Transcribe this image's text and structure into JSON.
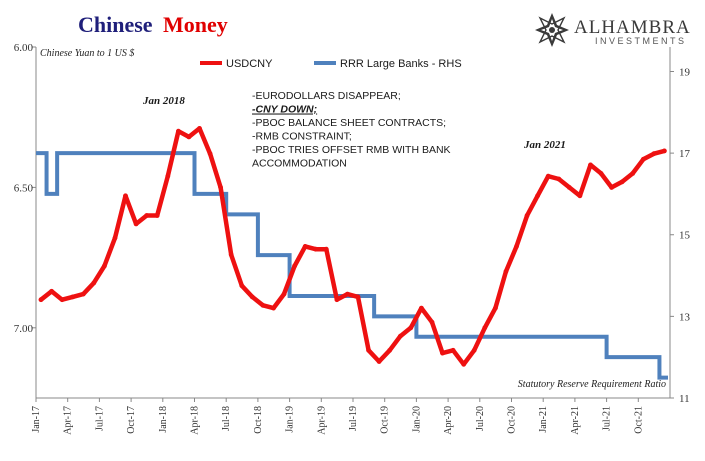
{
  "title": {
    "part1": "Chinese",
    "part2": "Money",
    "color1": "#1f1f7a",
    "color2": "#e00000"
  },
  "logo": {
    "name": "ALHAMBRA",
    "sub": "INVESTMENTS",
    "icon": "alhambra-star-icon"
  },
  "chart_data": {
    "type": "line",
    "left_axis_note": "Chinese Yuan to 1 US $",
    "right_axis_note": "Statutory Reserve Requirement Ratio",
    "left_axis": {
      "min": 6.0,
      "max": 7.25,
      "inverted": true,
      "ticks": [
        "6.00",
        "6.50",
        "7.00"
      ],
      "tick_values": [
        6.0,
        6.5,
        7.0
      ]
    },
    "right_axis": {
      "min": 11,
      "max": 19.6,
      "ticks": [
        "19",
        "17",
        "15",
        "13",
        "11"
      ],
      "tick_values": [
        19,
        17,
        15,
        13,
        11
      ]
    },
    "x_axis": {
      "start": "2017-01",
      "end": "2021-12",
      "ticks": [
        "Jan-17",
        "Apr-17",
        "Jul-17",
        "Oct-17",
        "Jan-18",
        "Apr-18",
        "Jul-18",
        "Oct-18",
        "Jan-19",
        "Apr-19",
        "Jul-19",
        "Oct-19",
        "Jan-20",
        "Apr-20",
        "Jul-20",
        "Oct-20",
        "Jan-21",
        "Apr-21",
        "Jul-21",
        "Oct-21"
      ],
      "tick_positions": [
        "2017-01",
        "2017-04",
        "2017-07",
        "2017-10",
        "2018-01",
        "2018-04",
        "2018-07",
        "2018-10",
        "2019-01",
        "2019-04",
        "2019-07",
        "2019-10",
        "2020-01",
        "2020-04",
        "2020-07",
        "2020-10",
        "2021-01",
        "2021-04",
        "2021-07",
        "2021-10"
      ]
    },
    "series": [
      {
        "name": "USDCNY",
        "color": "#ee1111",
        "axis": "left",
        "x": [
          "2017-01",
          "2017-02",
          "2017-03",
          "2017-04",
          "2017-05",
          "2017-06",
          "2017-07",
          "2017-08",
          "2017-09",
          "2017-10",
          "2017-11",
          "2017-12",
          "2018-01",
          "2018-02",
          "2018-03",
          "2018-04",
          "2018-05",
          "2018-06",
          "2018-07",
          "2018-08",
          "2018-09",
          "2018-10",
          "2018-11",
          "2018-12",
          "2019-01",
          "2019-02",
          "2019-03",
          "2019-04",
          "2019-05",
          "2019-06",
          "2019-07",
          "2019-08",
          "2019-09",
          "2019-10",
          "2019-11",
          "2019-12",
          "2020-01",
          "2020-02",
          "2020-03",
          "2020-04",
          "2020-05",
          "2020-06",
          "2020-07",
          "2020-08",
          "2020-09",
          "2020-10",
          "2020-11",
          "2020-12",
          "2021-01",
          "2021-02",
          "2021-03",
          "2021-04",
          "2021-05",
          "2021-06",
          "2021-07",
          "2021-08",
          "2021-09",
          "2021-10",
          "2021-11",
          "2021-12"
        ],
        "values": [
          6.9,
          6.87,
          6.9,
          6.89,
          6.88,
          6.84,
          6.78,
          6.68,
          6.53,
          6.63,
          6.6,
          6.6,
          6.46,
          6.3,
          6.32,
          6.29,
          6.38,
          6.5,
          6.74,
          6.85,
          6.89,
          6.92,
          6.93,
          6.88,
          6.78,
          6.71,
          6.72,
          6.72,
          6.9,
          6.88,
          6.89,
          7.08,
          7.12,
          7.08,
          7.03,
          7.0,
          6.93,
          6.98,
          7.09,
          7.08,
          7.13,
          7.08,
          7.0,
          6.93,
          6.8,
          6.71,
          6.6,
          6.53,
          6.46,
          6.47,
          6.5,
          6.53,
          6.42,
          6.45,
          6.5,
          6.48,
          6.45,
          6.4,
          6.38,
          6.37
        ]
      },
      {
        "name": "RRR Large Banks - RHS",
        "color": "#4f81bd",
        "axis": "right",
        "steps": [
          {
            "from": "2017-01",
            "to": "2017-02",
            "value": 17.0
          },
          {
            "from": "2017-02",
            "to": "2017-03",
            "value": 16.0
          },
          {
            "from": "2017-03",
            "to": "2018-04",
            "value": 17.0
          },
          {
            "from": "2018-04",
            "to": "2018-07",
            "value": 16.0
          },
          {
            "from": "2018-07",
            "to": "2018-10",
            "value": 15.5
          },
          {
            "from": "2018-10",
            "to": "2019-01",
            "value": 14.5
          },
          {
            "from": "2019-01",
            "to": "2019-05",
            "value": 13.5
          },
          {
            "from": "2019-05",
            "to": "2019-09",
            "value": 13.5
          },
          {
            "from": "2019-09",
            "to": "2020-01",
            "value": 13.0
          },
          {
            "from": "2020-01",
            "to": "2021-07",
            "value": 12.5
          },
          {
            "from": "2021-07",
            "to": "2021-12",
            "value": 12.0
          },
          {
            "from": "2021-12",
            "to": "2021-12",
            "value": 11.5
          }
        ]
      }
    ],
    "annotations": {
      "jan2018": "Jan 2018",
      "jan2021": "Jan 2021",
      "list": [
        "-EURODOLLARS DISAPPEAR;",
        "-CNY DOWN;",
        "-PBOC BALANCE SHEET CONTRACTS;",
        "-RMB CONSTRAINT;",
        "-PBOC TRIES OFFSET RMB WITH BANK",
        "ACCOMMODATION"
      ]
    },
    "legend": {
      "placement": "top-center"
    }
  }
}
